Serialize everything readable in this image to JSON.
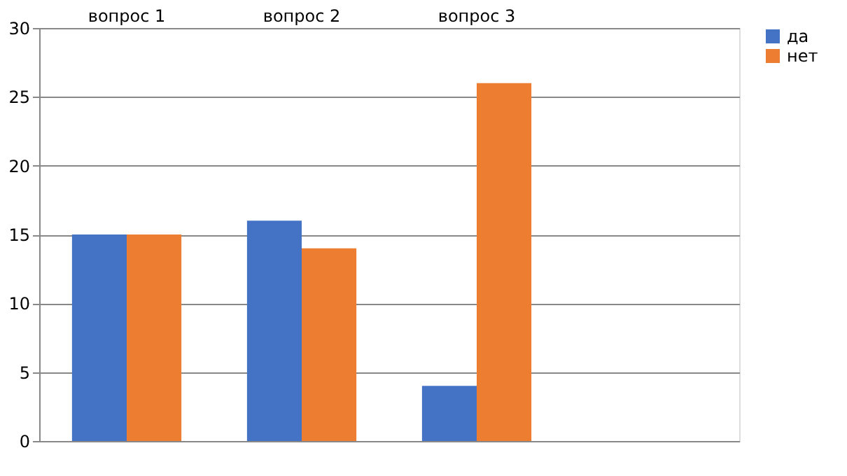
{
  "chart_data": {
    "type": "bar",
    "categories": [
      "вопрос 1",
      "вопрос 2",
      "вопрос 3",
      null
    ],
    "series": [
      {
        "name": "да",
        "color": "#4472c4",
        "values": [
          15,
          16,
          4,
          null
        ]
      },
      {
        "name": "нет",
        "color": "#ed7d31",
        "values": [
          15,
          14,
          26,
          null
        ]
      }
    ],
    "ylim": [
      0,
      30
    ],
    "yticks": [
      0,
      5,
      10,
      15,
      20,
      25,
      30
    ],
    "grid": "y",
    "legend": "right"
  }
}
